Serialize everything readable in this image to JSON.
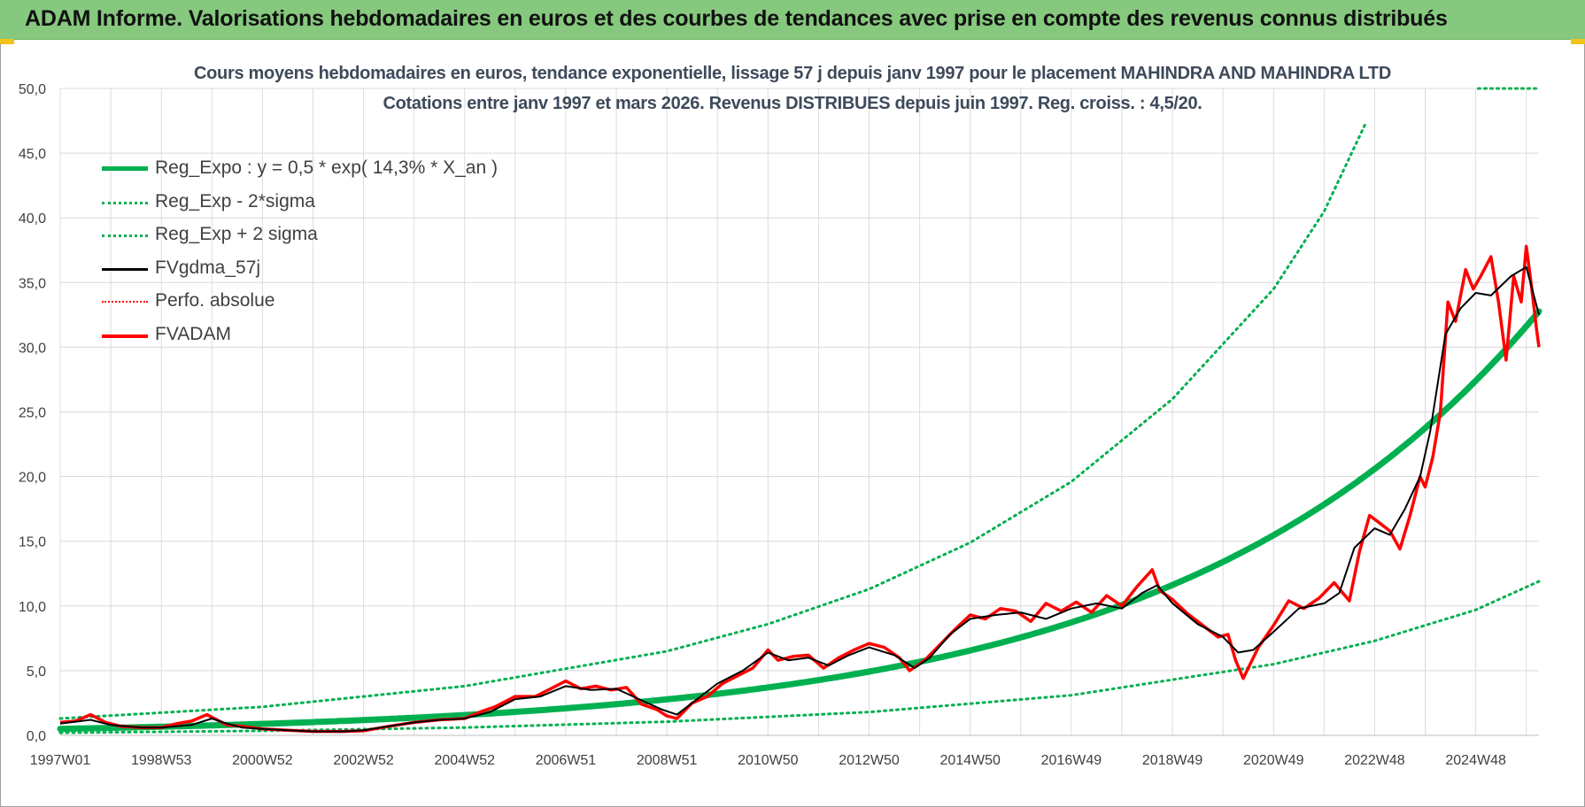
{
  "header": {
    "title": "ADAM Informe. Valorisations hebdomadaires en euros et des courbes de tendances avec prise en compte des revenus connus distribués"
  },
  "colors": {
    "banner": "#86c97e",
    "trend": "#00b050",
    "price": "#ff0000",
    "smooth": "#000000",
    "grid": "#d9d9d9"
  },
  "chart_data": {
    "type": "line",
    "title_line1": "Cours moyens hebdomadaires en euros, tendance exponentielle, lissage 57 j depuis janv 1997 pour le placement MAHINDRA AND MAHINDRA LTD",
    "title_line2": "Cotations entre janv 1997 et mars 2026. Revenus DISTRIBUES depuis juin 1997. Reg. croiss. : 4,5/20.",
    "xlabel": "",
    "ylabel": "",
    "ylim": [
      0,
      50
    ],
    "yticks": [
      "0,0",
      "5,0",
      "10,0",
      "15,0",
      "20,0",
      "25,0",
      "30,0",
      "35,0",
      "40,0",
      "45,0",
      "50,0"
    ],
    "xlim": [
      1997.0,
      2026.25
    ],
    "xticks": [
      {
        "label": "1997W01",
        "x": 1997.0
      },
      {
        "label": "1998W53",
        "x": 1999.0
      },
      {
        "label": "2000W52",
        "x": 2001.0
      },
      {
        "label": "2002W52",
        "x": 2003.0
      },
      {
        "label": "2004W52",
        "x": 2005.0
      },
      {
        "label": "2006W51",
        "x": 2007.0
      },
      {
        "label": "2008W51",
        "x": 2009.0
      },
      {
        "label": "2010W50",
        "x": 2011.0
      },
      {
        "label": "2012W50",
        "x": 2013.0
      },
      {
        "label": "2014W50",
        "x": 2015.0
      },
      {
        "label": "2016W49",
        "x": 2017.0
      },
      {
        "label": "2018W49",
        "x": 2019.0
      },
      {
        "label": "2020W49",
        "x": 2021.0
      },
      {
        "label": "2022W48",
        "x": 2023.0
      },
      {
        "label": "2024W48",
        "x": 2025.0
      }
    ],
    "legend": [
      {
        "label": "Reg_Expo : y = 0,5 * exp( 14,3% *  X_an )",
        "style": "trend"
      },
      {
        "label": "Reg_Exp - 2*sigma",
        "style": "band"
      },
      {
        "label": "Reg_Exp + 2 sigma",
        "style": "band"
      },
      {
        "label": "FVgdma_57j",
        "style": "smooth"
      },
      {
        "label": "Perfo. absolue",
        "style": "perfo"
      },
      {
        "label": "FVADAM",
        "style": "price"
      }
    ],
    "series": [
      {
        "name": "Reg_Expo",
        "formula": {
          "a": 0.5,
          "rate": 0.143,
          "x0": 1997.0
        },
        "x": [
          1997.0,
          1999.0,
          2001.0,
          2003.0,
          2005.0,
          2007.0,
          2009.0,
          2011.0,
          2013.0,
          2015.0,
          2017.0,
          2019.0,
          2021.0,
          2023.0,
          2025.0,
          2026.25
        ],
        "values": [
          0.5,
          0.7,
          0.9,
          1.2,
          1.6,
          2.1,
          2.7,
          3.5,
          4.6,
          6.1,
          8.0,
          10.5,
          14.2,
          18.9,
          25.0,
          30.5
        ]
      },
      {
        "name": "Reg_Exp - 2*sigma",
        "x": [
          1997.0,
          2001.0,
          2005.0,
          2009.0,
          2013.0,
          2017.0,
          2021.0,
          2023.0,
          2025.0,
          2026.25
        ],
        "values": [
          0.2,
          0.35,
          0.6,
          1.05,
          1.8,
          3.1,
          5.5,
          7.3,
          9.7,
          11.9
        ]
      },
      {
        "name": "Reg_Exp + 2 sigma",
        "x": [
          1997.0,
          2001.0,
          2005.0,
          2009.0,
          2011.0,
          2013.0,
          2015.0,
          2017.0,
          2019.0,
          2021.0,
          2022.0,
          2022.82
        ],
        "values": [
          1.3,
          2.2,
          3.8,
          6.5,
          8.6,
          11.3,
          14.9,
          19.6,
          26.0,
          34.5,
          40.5,
          47.3
        ]
      },
      {
        "name": "FVgdma_57j",
        "x": [
          1997.0,
          1997.6,
          1998.0,
          1998.6,
          1999.0,
          1999.6,
          2000.0,
          2000.3,
          2000.6,
          2001.0,
          2001.5,
          2002.0,
          2002.6,
          2003.0,
          2003.5,
          2004.0,
          2004.5,
          2005.0,
          2005.5,
          2006.0,
          2006.5,
          2007.0,
          2007.5,
          2008.0,
          2008.5,
          2008.9,
          2009.2,
          2009.6,
          2010.0,
          2010.5,
          2011.0,
          2011.4,
          2011.8,
          2012.2,
          2012.6,
          2013.0,
          2013.5,
          2013.9,
          2014.2,
          2014.6,
          2015.0,
          2015.5,
          2016.0,
          2016.5,
          2017.0,
          2017.5,
          2018.0,
          2018.4,
          2018.7,
          2019.0,
          2019.5,
          2020.0,
          2020.3,
          2020.6,
          2021.0,
          2021.5,
          2022.0,
          2022.3,
          2022.6,
          2023.0,
          2023.3,
          2023.6,
          2023.9,
          2024.1,
          2024.4,
          2024.7,
          2025.0,
          2025.3,
          2025.7,
          2026.0,
          2026.25
        ],
        "values": [
          0.9,
          1.2,
          0.8,
          0.6,
          0.6,
          0.8,
          1.3,
          0.9,
          0.6,
          0.5,
          0.4,
          0.3,
          0.3,
          0.4,
          0.7,
          1.0,
          1.2,
          1.3,
          1.8,
          2.8,
          3.0,
          3.8,
          3.5,
          3.6,
          2.7,
          2.0,
          1.6,
          2.8,
          4.0,
          5.0,
          6.4,
          5.8,
          6.0,
          5.4,
          6.2,
          6.8,
          6.2,
          5.2,
          6.0,
          7.8,
          9.0,
          9.3,
          9.5,
          9.0,
          9.8,
          10.2,
          9.8,
          11.0,
          11.6,
          10.2,
          8.6,
          7.6,
          6.4,
          6.6,
          8.0,
          9.8,
          10.2,
          11.0,
          14.5,
          16.0,
          15.5,
          17.5,
          20.0,
          23.5,
          31.0,
          33.0,
          34.2,
          34.0,
          35.5,
          36.2,
          32.5
        ]
      },
      {
        "name": "FVADAM",
        "x": [
          1997.0,
          1997.3,
          1997.6,
          1997.9,
          1998.2,
          1998.6,
          1999.0,
          1999.3,
          1999.6,
          1999.9,
          2000.1,
          2000.3,
          2000.6,
          2001.0,
          2001.5,
          2002.0,
          2002.6,
          2003.0,
          2003.5,
          2004.0,
          2004.5,
          2005.0,
          2005.3,
          2005.6,
          2006.0,
          2006.4,
          2006.7,
          2007.0,
          2007.3,
          2007.6,
          2007.9,
          2008.2,
          2008.5,
          2008.8,
          2009.0,
          2009.2,
          2009.5,
          2009.8,
          2010.1,
          2010.4,
          2010.7,
          2011.0,
          2011.2,
          2011.5,
          2011.8,
          2012.1,
          2012.4,
          2012.7,
          2013.0,
          2013.3,
          2013.6,
          2013.8,
          2014.1,
          2014.4,
          2014.7,
          2015.0,
          2015.3,
          2015.6,
          2015.9,
          2016.2,
          2016.5,
          2016.8,
          2017.1,
          2017.4,
          2017.7,
          2018.0,
          2018.3,
          2018.6,
          2018.75,
          2019.0,
          2019.3,
          2019.6,
          2019.9,
          2020.1,
          2020.25,
          2020.4,
          2020.7,
          2021.0,
          2021.3,
          2021.6,
          2021.9,
          2022.2,
          2022.5,
          2022.7,
          2022.9,
          2023.1,
          2023.3,
          2023.5,
          2023.7,
          2023.9,
          2024.0,
          2024.15,
          2024.3,
          2024.45,
          2024.6,
          2024.8,
          2024.95,
          2025.1,
          2025.3,
          2025.45,
          2025.6,
          2025.75,
          2025.9,
          2026.0,
          2026.1,
          2026.2,
          2026.25
        ],
        "values": [
          1.0,
          1.1,
          1.6,
          1.0,
          0.7,
          0.6,
          0.6,
          0.9,
          1.1,
          1.6,
          1.2,
          0.8,
          0.7,
          0.5,
          0.4,
          0.3,
          0.3,
          0.35,
          0.7,
          1.0,
          1.2,
          1.3,
          1.8,
          2.2,
          3.0,
          3.0,
          3.6,
          4.2,
          3.6,
          3.8,
          3.5,
          3.7,
          2.4,
          2.0,
          1.5,
          1.3,
          2.5,
          3.0,
          4.0,
          4.6,
          5.2,
          6.6,
          5.8,
          6.1,
          6.2,
          5.2,
          6.0,
          6.6,
          7.1,
          6.8,
          6.0,
          5.0,
          5.8,
          7.0,
          8.2,
          9.3,
          9.0,
          9.8,
          9.6,
          8.8,
          10.2,
          9.6,
          10.3,
          9.5,
          10.8,
          10.0,
          11.5,
          12.8,
          11.2,
          10.5,
          9.4,
          8.5,
          7.6,
          7.8,
          5.8,
          4.4,
          6.8,
          8.5,
          10.4,
          9.8,
          10.6,
          11.8,
          10.4,
          14.2,
          17.0,
          16.4,
          15.8,
          14.4,
          17.0,
          20.0,
          19.2,
          21.5,
          25.0,
          33.5,
          32.0,
          36.0,
          34.5,
          35.5,
          37.0,
          33.5,
          29.0,
          35.5,
          33.5,
          37.8,
          34.8,
          31.5,
          30.0
        ]
      }
    ]
  }
}
